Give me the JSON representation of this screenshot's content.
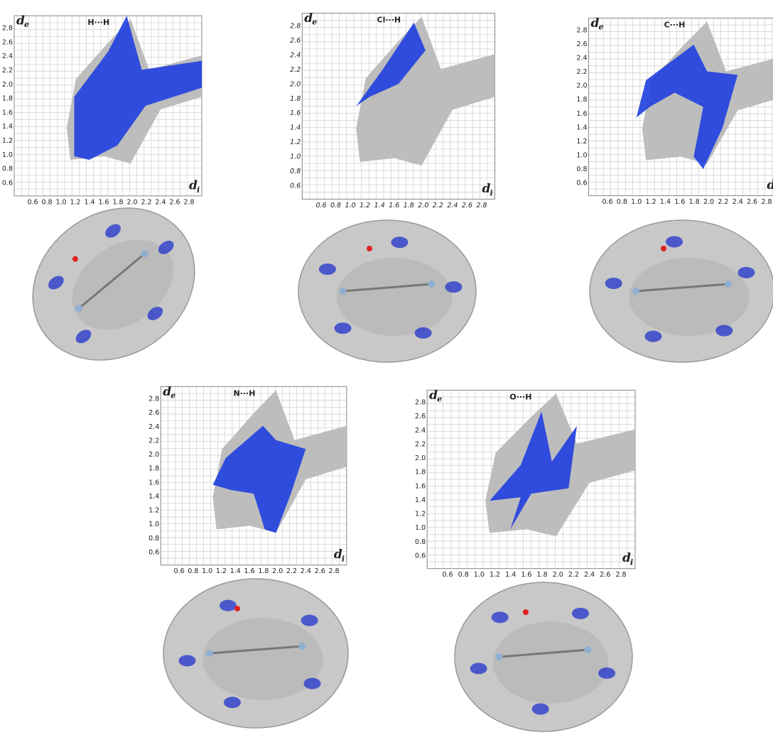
{
  "panels": [
    {
      "title": "H···H",
      "y_label": "d",
      "y_label_sub": "e",
      "x_label": "d",
      "x_label_sub": "i",
      "yticks": [
        "2.8",
        "2.6",
        "2.4",
        "2.2",
        "2.0",
        "1.8",
        "1.6",
        "1.4",
        "1.2",
        "1.0",
        "0.8",
        "0.6"
      ],
      "xticks": [
        "0.6",
        "0.8",
        "1.0",
        "1.2",
        "1.4",
        "1.6",
        "1.8",
        "2.0",
        "2.2",
        "2.4",
        "2.6",
        "2.8"
      ]
    },
    {
      "title": "Cl···H",
      "y_label": "d",
      "y_label_sub": "e",
      "x_label": "d",
      "x_label_sub": "i",
      "yticks": [
        "2.8",
        "2.6",
        "2.4",
        "2.2",
        "2.0",
        "1.8",
        "1.6",
        "1.4",
        "1.2",
        "1.0",
        "0.8",
        "0.6"
      ],
      "xticks": [
        "0.6",
        "0.8",
        "1.0",
        "1.2",
        "1.4",
        "1.6",
        "1.8",
        "2.0",
        "2.2",
        "2.4",
        "2.6",
        "2.8"
      ]
    },
    {
      "title": "C···H",
      "y_label": "d",
      "y_label_sub": "e",
      "x_label": "d",
      "x_label_sub": "i",
      "yticks": [
        "2.8",
        "2.6",
        "2.4",
        "2.2",
        "2.0",
        "1.8",
        "1.6",
        "1.4",
        "1.2",
        "1.0",
        "0.8",
        "0.6"
      ],
      "xticks": [
        "0.6",
        "0.8",
        "1.0",
        "1.2",
        "1.4",
        "1.6",
        "1.8",
        "2.0",
        "2.2",
        "2.4",
        "2.6",
        "2.8"
      ]
    },
    {
      "title": "N···H",
      "y_label": "d",
      "y_label_sub": "e",
      "x_label": "d",
      "x_label_sub": "i",
      "yticks": [
        "2.8",
        "2.6",
        "2.4",
        "2.2",
        "2.0",
        "1.8",
        "1.6",
        "1.4",
        "1.2",
        "1.0",
        "0.8",
        "0.6"
      ],
      "xticks": [
        "0.6",
        "0.8",
        "1.0",
        "1.2",
        "1.4",
        "1.6",
        "1.8",
        "2.0",
        "2.2",
        "2.4",
        "2.6",
        "2.8"
      ]
    },
    {
      "title": "O···H",
      "y_label": "d",
      "y_label_sub": "e",
      "x_label": "d",
      "x_label_sub": "i",
      "yticks": [
        "2.8",
        "2.6",
        "2.4",
        "2.2",
        "2.0",
        "1.8",
        "1.6",
        "1.4",
        "1.2",
        "1.0",
        "0.8",
        "0.6"
      ],
      "xticks": [
        "0.6",
        "0.8",
        "1.0",
        "1.2",
        "1.4",
        "1.6",
        "1.8",
        "2.0",
        "2.2",
        "2.4",
        "2.6",
        "2.8"
      ]
    }
  ]
}
